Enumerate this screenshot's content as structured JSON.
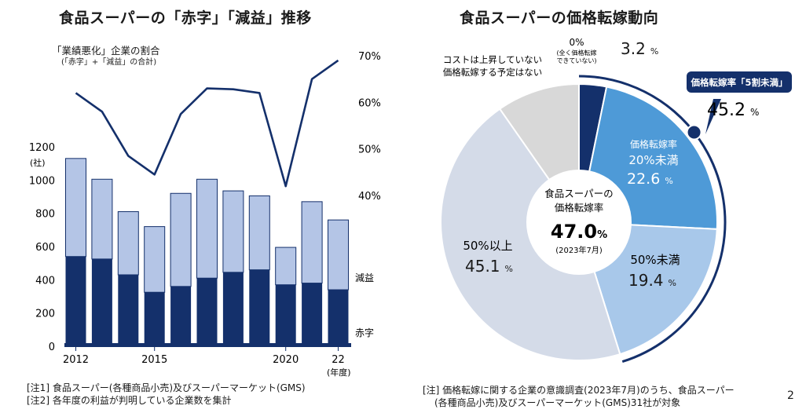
{
  "page_number": "2",
  "chart_data": [
    {
      "type": "bar",
      "title": "食品スーパーの「赤字」「減益」推移",
      "left_axis_label": "(社)",
      "right_axis_label_line1": "「業績悪化」企業の割合",
      "right_axis_label_line2": "(「赤字」+「減益」の合計)",
      "x_unit": "(年度)",
      "x_tick_labels": [
        "2012",
        "2015",
        "2020",
        "22"
      ],
      "categories": [
        "2012",
        "2013",
        "2014",
        "2015",
        "2016",
        "2017",
        "2018",
        "2019",
        "2020",
        "2021",
        "2022"
      ],
      "ylim": [
        0,
        1200
      ],
      "y_ticks": [
        0,
        200,
        400,
        600,
        800,
        1000,
        1200
      ],
      "right_ylim": [
        40,
        70
      ],
      "right_ticks": [
        "40%",
        "50%",
        "60%",
        "70%"
      ],
      "series": [
        {
          "name": "赤字",
          "values": [
            540,
            525,
            430,
            325,
            360,
            410,
            445,
            460,
            370,
            380,
            340
          ],
          "color": "#14306b"
        },
        {
          "name": "減益",
          "values": [
            590,
            480,
            380,
            395,
            560,
            595,
            490,
            445,
            225,
            490,
            420
          ],
          "color": "#b4c5e6"
        },
        {
          "name": "業績悪化割合",
          "type": "line",
          "values": [
            62.0,
            58.0,
            48.5,
            44.5,
            57.5,
            63.0,
            62.8,
            62.0,
            42.0,
            65.0,
            69.0
          ],
          "color": "#14306b"
        }
      ],
      "notes": [
        "[注1]  食品スーパー(各種商品小売)及びスーパーマーケット(GMS)",
        "[注2]  各年度の利益が判明している企業数を集計"
      ]
    },
    {
      "type": "pie",
      "title": "食品スーパーの価格転嫁動向",
      "center_label_line1": "食品スーパーの",
      "center_label_line2": "価格転嫁率",
      "center_value": "47.0",
      "center_unit": "%",
      "center_sub": "(2023年7月)",
      "slices": [
        {
          "line1": "0%",
          "line2": "(全く価格転嫁",
          "line3": "できていない)",
          "value": 3.2,
          "color": "#14306b"
        },
        {
          "line1": "価格転嫁率",
          "line2": "20%未満",
          "value": 22.6,
          "color": "#4e9ad7"
        },
        {
          "line1": "50%未満",
          "value": 19.4,
          "color": "#a8c8ea"
        },
        {
          "line1": "50%以上",
          "value": 45.1,
          "color": "#d4dbe8"
        },
        {
          "line1": "コストは上昇していない",
          "line2": "価格転嫁する予定はない",
          "value": 9.7,
          "color": "#d8d8d8"
        }
      ],
      "highlight_label": "価格転嫁率「5割未満」",
      "highlight_value": 45.2,
      "percent_unit": "%",
      "notes": [
        "[注] 価格転嫁に関する企業の意識調査(2023年7月)のうち、食品スーパー",
        "(各種商品小売)及びスーパーマーケット(GMS)31社が対象"
      ]
    }
  ]
}
